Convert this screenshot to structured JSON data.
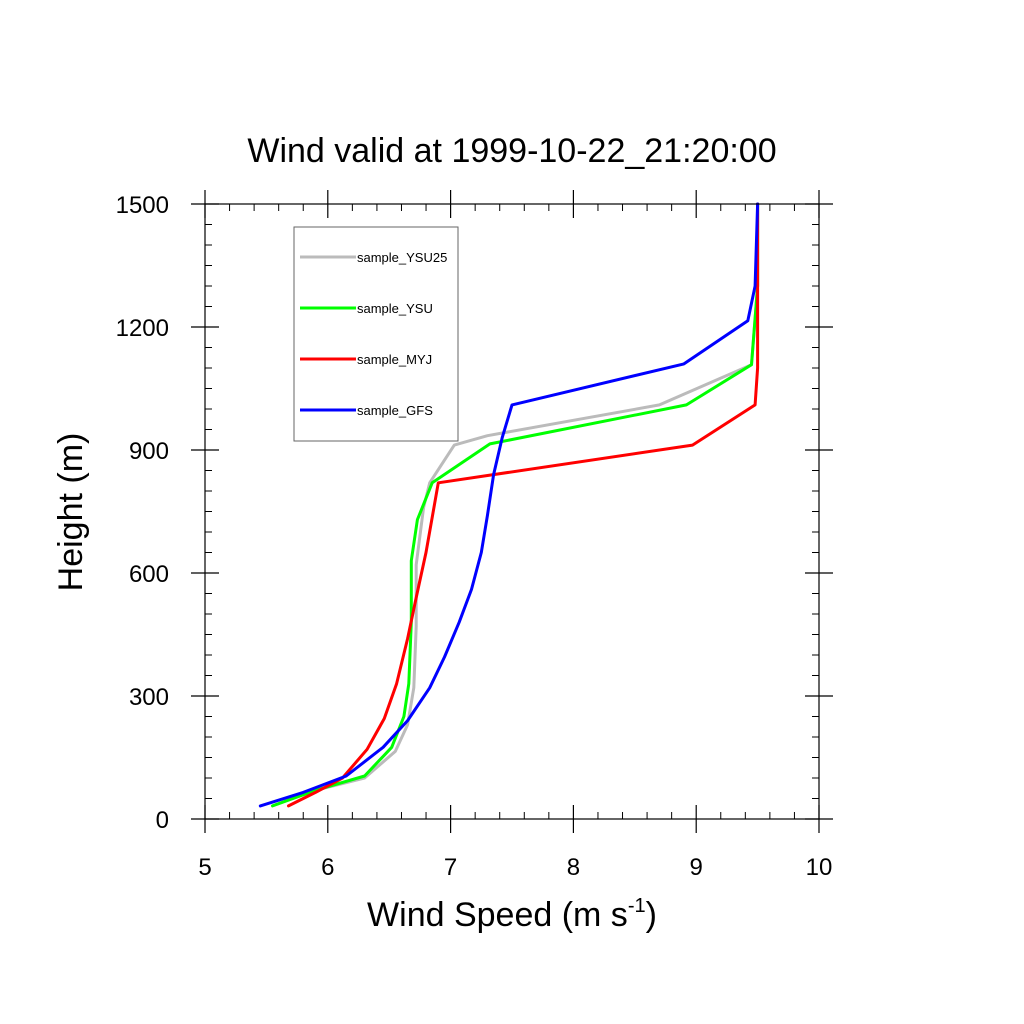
{
  "chart_data": {
    "type": "line",
    "title": "Wind valid at 1999-10-22_21:20:00",
    "xlabel": "Wind Speed (m s",
    "xlabel_sup": "-1",
    "xlabel_end": ")",
    "ylabel": "Height (m)",
    "xlim": [
      5,
      10
    ],
    "ylim": [
      0,
      1500
    ],
    "xticks": [
      "5",
      "6",
      "7",
      "8",
      "9",
      "10"
    ],
    "yticks": [
      "0",
      "300",
      "600",
      "900",
      "1200",
      "1500"
    ],
    "grid": false,
    "legend_placement": "top-left",
    "series": [
      {
        "name": "sample_YSU25",
        "color": "#bbbbbb",
        "points": [
          [
            5.55,
            32
          ],
          [
            5.9,
            70
          ],
          [
            6.3,
            100
          ],
          [
            6.55,
            165
          ],
          [
            6.65,
            230
          ],
          [
            6.7,
            320
          ],
          [
            6.72,
            470
          ],
          [
            6.72,
            620
          ],
          [
            6.78,
            760
          ],
          [
            6.83,
            820
          ],
          [
            7.03,
            912
          ],
          [
            7.3,
            935
          ],
          [
            8.7,
            1010
          ],
          [
            9.45,
            1108
          ],
          [
            9.5,
            1300
          ],
          [
            9.5,
            1500
          ]
        ]
      },
      {
        "name": "sample_YSU",
        "color": "#00ff00",
        "points": [
          [
            5.55,
            32
          ],
          [
            5.9,
            70
          ],
          [
            6.3,
            105
          ],
          [
            6.52,
            175
          ],
          [
            6.62,
            250
          ],
          [
            6.66,
            330
          ],
          [
            6.68,
            480
          ],
          [
            6.68,
            630
          ],
          [
            6.73,
            730
          ],
          [
            6.85,
            820
          ],
          [
            7.32,
            915
          ],
          [
            8.92,
            1010
          ],
          [
            9.45,
            1108
          ],
          [
            9.5,
            1300
          ],
          [
            9.5,
            1500
          ]
        ]
      },
      {
        "name": "sample_MYJ",
        "color": "#ff0000",
        "points": [
          [
            5.68,
            32
          ],
          [
            5.9,
            65
          ],
          [
            6.12,
            100
          ],
          [
            6.32,
            170
          ],
          [
            6.46,
            245
          ],
          [
            6.56,
            330
          ],
          [
            6.65,
            440
          ],
          [
            6.72,
            540
          ],
          [
            6.8,
            650
          ],
          [
            6.9,
            820
          ],
          [
            8.97,
            912
          ],
          [
            9.48,
            1010
          ],
          [
            9.5,
            1100
          ],
          [
            9.5,
            1300
          ],
          [
            9.5,
            1500
          ]
        ]
      },
      {
        "name": "sample_GFS",
        "color": "#0000ff",
        "points": [
          [
            5.45,
            32
          ],
          [
            5.8,
            65
          ],
          [
            6.15,
            105
          ],
          [
            6.45,
            175
          ],
          [
            6.65,
            240
          ],
          [
            6.83,
            320
          ],
          [
            6.95,
            395
          ],
          [
            7.07,
            480
          ],
          [
            7.17,
            560
          ],
          [
            7.25,
            650
          ],
          [
            7.3,
            740
          ],
          [
            7.35,
            840
          ],
          [
            7.42,
            930
          ],
          [
            7.5,
            1010
          ],
          [
            8.9,
            1110
          ],
          [
            9.42,
            1215
          ],
          [
            9.48,
            1300
          ],
          [
            9.5,
            1500
          ]
        ]
      }
    ]
  }
}
